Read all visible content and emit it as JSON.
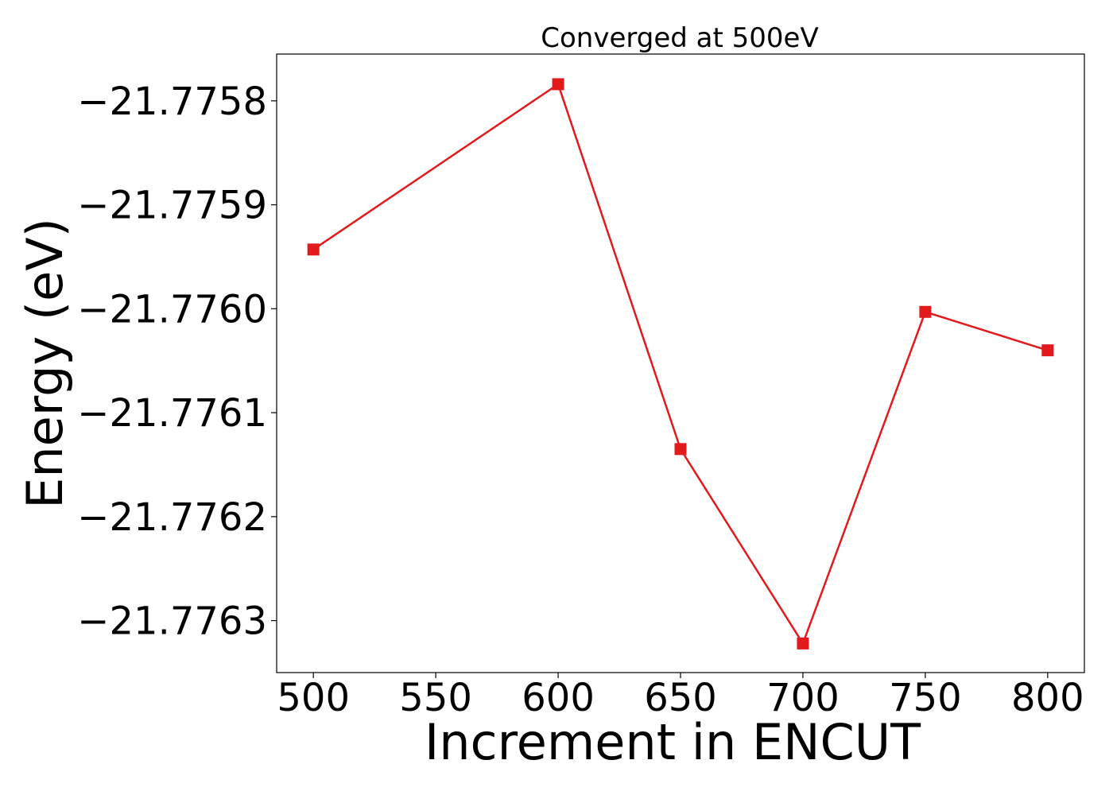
{
  "chart_data": {
    "type": "line",
    "title": "Converged at 500eV",
    "xlabel": "Increment in ENCUT",
    "ylabel": "Energy (eV)",
    "x": [
      500,
      600,
      650,
      700,
      750,
      800
    ],
    "series": [
      {
        "values": [
          -21.775943,
          -21.775784,
          -21.776135,
          -21.776322,
          -21.776003,
          -21.77604
        ],
        "color": "#e31a1c",
        "marker": "square"
      }
    ],
    "xticks": [
      500,
      550,
      600,
      650,
      700,
      750,
      800
    ],
    "xtick_labels": [
      "500",
      "550",
      "600",
      "650",
      "700",
      "750",
      "800"
    ],
    "yticks": [
      -21.7758,
      -21.7759,
      -21.776,
      -21.7761,
      -21.7762,
      -21.7763
    ],
    "ytick_labels": [
      "−21.7758",
      "−21.7759",
      "−21.7760",
      "−21.7761",
      "−21.7762",
      "−21.7763"
    ],
    "xlim": [
      485,
      815
    ],
    "ylim": [
      -21.77635,
      -21.775755
    ],
    "grid": false,
    "legend": "none"
  }
}
